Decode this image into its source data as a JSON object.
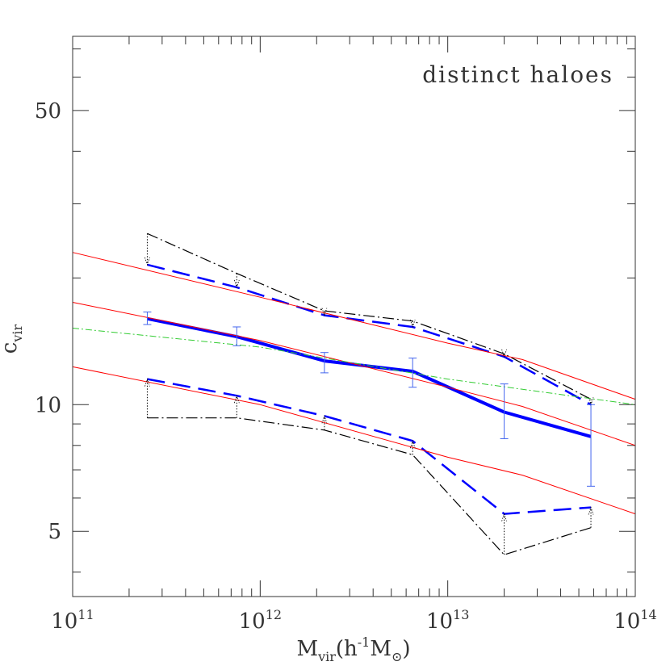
{
  "chart_data": {
    "type": "line",
    "annotation": "distinct haloes",
    "xscale": "log",
    "yscale": "log",
    "xlim": [
      100000000000.0,
      100000000000000.0
    ],
    "ylim": [
      3.5,
      75
    ],
    "x_ticks": [
      {
        "value": 100000000000.0,
        "base": "10",
        "exp": "11"
      },
      {
        "value": 1000000000000.0,
        "base": "10",
        "exp": "12"
      },
      {
        "value": 10000000000000.0,
        "base": "10",
        "exp": "13"
      },
      {
        "value": 100000000000000.0,
        "base": "10",
        "exp": "14"
      }
    ],
    "y_ticks": [
      {
        "value": 5,
        "label": "5"
      },
      {
        "value": 10,
        "label": "10"
      },
      {
        "value": 50,
        "label": "50"
      }
    ],
    "xlabel": {
      "main": "M",
      "sub": "vir",
      "paren": "(h",
      "sup": "-1",
      "unit": "M",
      "unit_sub": "⊙",
      "close": ")"
    },
    "ylabel": {
      "main": "c",
      "sub": "vir"
    },
    "series": [
      {
        "color": "#0000ff",
        "style": "solid",
        "width": 4,
        "points": [
          [
            250000000000.0,
            16.0
          ],
          [
            750000000000.0,
            14.5
          ],
          [
            2200000000000.0,
            12.7
          ],
          [
            6500000000000.0,
            12.0
          ],
          [
            20000000000000.0,
            9.6
          ],
          [
            58000000000000.0,
            8.4
          ]
        ],
        "errors": [
          [
            15.5,
            16.6
          ],
          [
            13.8,
            15.3
          ],
          [
            11.9,
            13.3
          ],
          [
            11.0,
            12.9
          ],
          [
            8.3,
            11.2
          ],
          [
            6.4,
            10.0
          ]
        ]
      },
      {
        "color": "#0000ff",
        "style": "dashed",
        "width": 2.5,
        "points": [
          [
            250000000000.0,
            21.5
          ],
          [
            750000000000.0,
            19.0
          ],
          [
            2200000000000.0,
            16.3
          ],
          [
            6500000000000.0,
            15.3
          ],
          [
            20000000000000.0,
            13.0
          ],
          [
            58000000000000.0,
            10.0
          ]
        ]
      },
      {
        "color": "#0000ff",
        "style": "dashed",
        "width": 2.5,
        "points": [
          [
            250000000000.0,
            11.5
          ],
          [
            750000000000.0,
            10.5
          ],
          [
            2200000000000.0,
            9.4
          ],
          [
            6500000000000.0,
            8.2
          ],
          [
            20000000000000.0,
            5.5
          ],
          [
            58000000000000.0,
            5.7
          ]
        ]
      },
      {
        "color": "#000000",
        "style": "dashdot",
        "width": 1.2,
        "points": [
          [
            250000000000.0,
            25.5
          ],
          [
            750000000000.0,
            20.5
          ],
          [
            2200000000000.0,
            16.7
          ],
          [
            6500000000000.0,
            15.8
          ],
          [
            20000000000000.0,
            13.2
          ],
          [
            58000000000000.0,
            10.3
          ]
        ]
      },
      {
        "color": "#000000",
        "style": "dashdot",
        "width": 1.2,
        "points": [
          [
            250000000000.0,
            9.3
          ],
          [
            750000000000.0,
            9.3
          ],
          [
            2200000000000.0,
            8.7
          ],
          [
            6500000000000.0,
            7.6
          ],
          [
            20000000000000.0,
            4.4
          ],
          [
            58000000000000.0,
            5.1
          ]
        ]
      },
      {
        "color": "#ff0000",
        "style": "solid",
        "width": 1,
        "points": [
          [
            100000000000.0,
            23.0
          ],
          [
            1000000000000.0,
            18.0
          ],
          [
            10000000000000.0,
            14.0
          ],
          [
            25000000000000.0,
            12.8
          ],
          [
            100000000000000.0,
            10.3
          ]
        ]
      },
      {
        "color": "#ff0000",
        "style": "solid",
        "width": 1,
        "points": [
          [
            100000000000.0,
            17.5
          ],
          [
            1000000000000.0,
            14.2
          ],
          [
            10000000000000.0,
            11.0
          ],
          [
            25000000000000.0,
            9.9
          ],
          [
            100000000000000.0,
            8.0
          ]
        ]
      },
      {
        "color": "#ff0000",
        "style": "solid",
        "width": 1,
        "points": [
          [
            100000000000.0,
            12.3
          ],
          [
            1000000000000.0,
            10.0
          ],
          [
            10000000000000.0,
            7.5
          ],
          [
            25000000000000.0,
            6.8
          ],
          [
            100000000000000.0,
            5.5
          ]
        ]
      },
      {
        "color": "#33cc33",
        "style": "dashdot",
        "width": 1,
        "points": [
          [
            100000000000.0,
            15.2
          ],
          [
            1000000000000.0,
            13.7
          ],
          [
            10000000000000.0,
            11.5
          ],
          [
            100000000000000.0,
            10.0
          ]
        ]
      }
    ],
    "connectors": [
      {
        "x": 250000000000.0,
        "from": 25.5,
        "to": 21.5
      },
      {
        "x": 750000000000.0,
        "from": 20.5,
        "to": 19.0
      },
      {
        "x": 2200000000000.0,
        "from": 16.7,
        "to": 16.3
      },
      {
        "x": 6500000000000.0,
        "from": 15.8,
        "to": 15.3
      },
      {
        "x": 20000000000000.0,
        "from": 13.2,
        "to": 13.0
      },
      {
        "x": 58000000000000.0,
        "from": 10.3,
        "to": 10.0
      },
      {
        "x": 250000000000.0,
        "from": 9.3,
        "to": 11.5
      },
      {
        "x": 750000000000.0,
        "from": 9.3,
        "to": 10.5
      },
      {
        "x": 2200000000000.0,
        "from": 8.7,
        "to": 9.4
      },
      {
        "x": 6500000000000.0,
        "from": 7.6,
        "to": 8.2
      },
      {
        "x": 20000000000000.0,
        "from": 4.4,
        "to": 5.5
      },
      {
        "x": 58000000000000.0,
        "from": 5.1,
        "to": 5.7
      }
    ]
  }
}
